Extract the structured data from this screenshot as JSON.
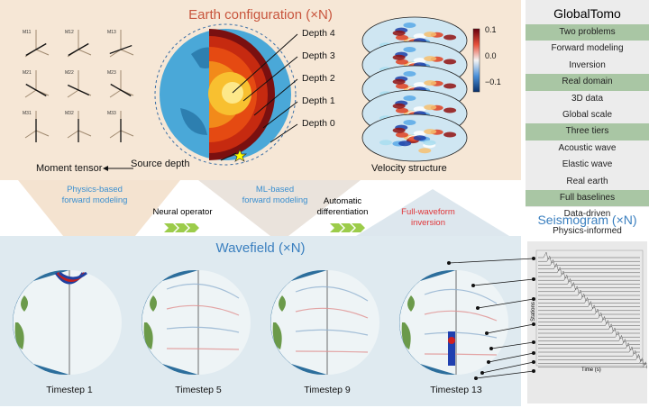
{
  "top": {
    "title": "Earth configuration (×N)",
    "moment_tensor": "Moment tensor",
    "source_depth": "Source depth",
    "velocity_structure": "Velocity structure",
    "depths": [
      "Depth 4",
      "Depth 3",
      "Depth 2",
      "Depth 1",
      "Depth 0"
    ],
    "tensor_labels": [
      "M11",
      "M12",
      "M13",
      "M21",
      "M22",
      "M23",
      "M31",
      "M32",
      "M33"
    ],
    "colorbar": {
      "ticks": [
        "0.1",
        "0.0",
        "−0.1"
      ],
      "colors": [
        "#08306b",
        "#4a90d9",
        "#f5f5f5",
        "#e8503a",
        "#67000d"
      ]
    }
  },
  "right": {
    "title": "GlobalTomo",
    "rows": [
      {
        "text": "Two problems",
        "head": true
      },
      {
        "text": "Forward modeling",
        "head": false
      },
      {
        "text": "Inversion",
        "head": false
      },
      {
        "text": "Real domain",
        "head": true
      },
      {
        "text": "3D data",
        "head": false
      },
      {
        "text": "Global scale",
        "head": false
      },
      {
        "text": "Three tiers",
        "head": true
      },
      {
        "text": "Acoustic wave",
        "head": false
      },
      {
        "text": "Elastic wave",
        "head": false
      },
      {
        "text": "Real earth",
        "head": false
      },
      {
        "text": "Full baselines",
        "head": true
      },
      {
        "text": "Data-driven",
        "head": false
      },
      {
        "text": "Physics-informed",
        "head": false
      }
    ]
  },
  "middle": {
    "physics": "Physics-based\nforward modeling",
    "neural": "Neural operator",
    "ml": "ML-based\nforward modeling",
    "autodiff": "Automatic\ndifferentiation",
    "fwi": "Full-waveform\ninversion"
  },
  "bottom": {
    "title": "Wavefield (×N)",
    "timesteps": [
      "Timestep 1",
      "Timestep 5",
      "Timestep 9",
      "Timestep 13"
    ]
  },
  "seismogram": {
    "title": "Seismogram (×N)",
    "xlabel": "Time (s)",
    "ylabel": "Stations"
  },
  "colors": {
    "accent_blue": "#3a8fd0",
    "fwi_red": "#e0373a",
    "header_green": "#a9c6a4"
  }
}
